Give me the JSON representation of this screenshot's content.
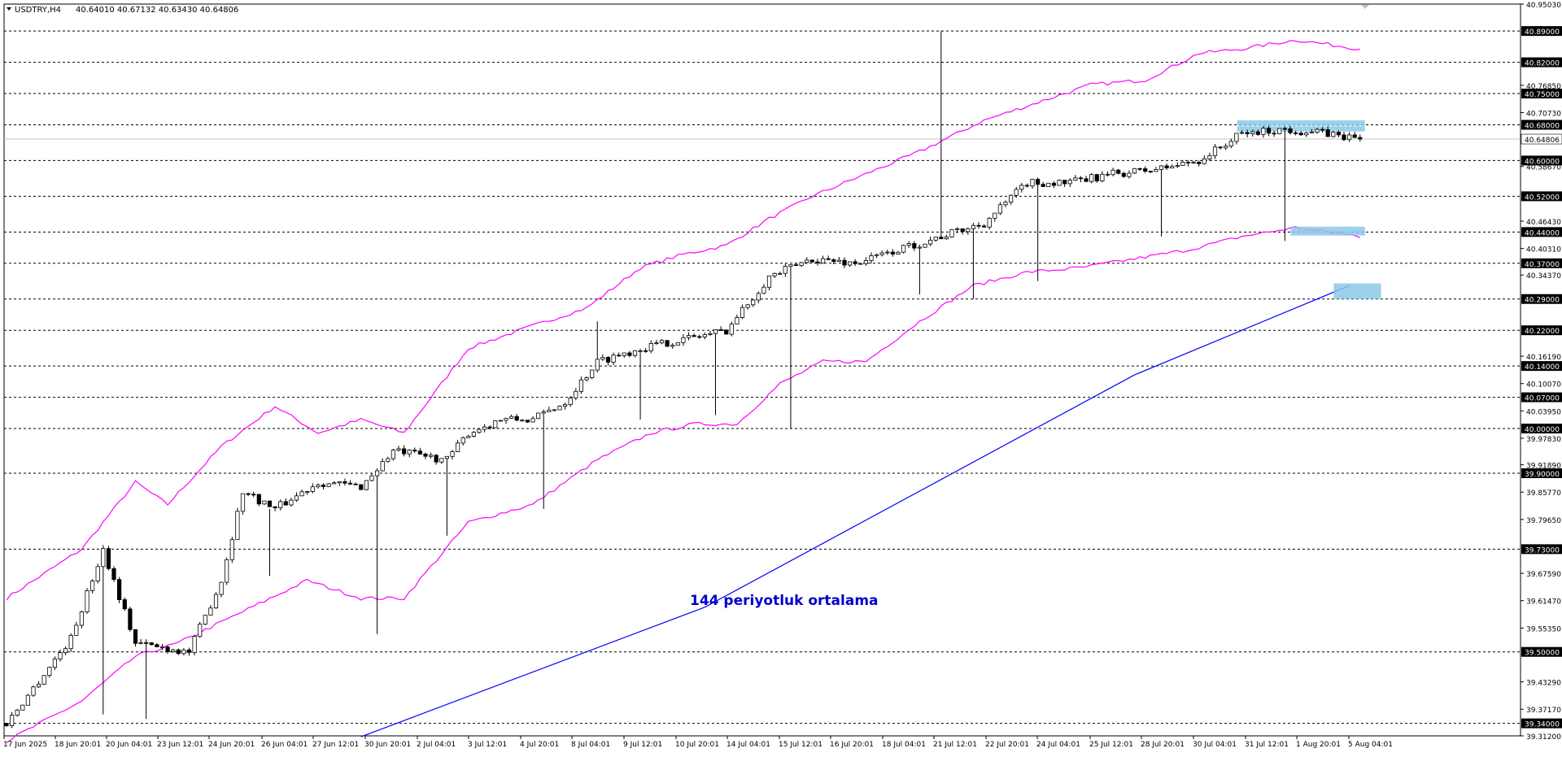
{
  "header": {
    "symbol_label": "USDTRY,H4",
    "ohlc": "40.64010 40.67132 40.63430 40.64806"
  },
  "annotation": {
    "text": "144 periyotluk ortalama"
  },
  "colors": {
    "upper_band": "#ff00ff",
    "lower_band": "#ff00ff",
    "moving_average": "#0000ff",
    "zone": "#8cc8e6",
    "current_price_line": "#c0c0c0",
    "grid_line": "#000000"
  },
  "chart_data": {
    "type": "candlestick",
    "symbol": "USDTRY",
    "timeframe": "H4",
    "grid": "horizontal dashed at key levels",
    "ylim": [
      39.312,
      40.9503
    ],
    "right_axis_ticks": [
      "40.95030",
      "40.76850",
      "40.70730",
      "40.58670",
      "40.46430",
      "40.40310",
      "40.34370",
      "40.16190",
      "40.10070",
      "40.03950",
      "39.97830",
      "39.91890",
      "39.85770",
      "39.79650",
      "39.67590",
      "39.61470",
      "39.55350",
      "39.43290",
      "39.37170",
      "39.31200"
    ],
    "levels": [
      "40.89000",
      "40.82000",
      "40.75000",
      "40.68000",
      "40.60000",
      "40.52000",
      "40.44000",
      "40.37000",
      "40.29000",
      "40.22000",
      "40.14000",
      "40.07000",
      "40.00000",
      "39.90000",
      "39.73000",
      "39.50000",
      "39.34000"
    ],
    "current_price": "40.64806",
    "x_tick_labels": [
      "17 Jun 2025",
      "18 Jun 20:01",
      "20 Jun 04:01",
      "23 Jun 12:01",
      "24 Jun 20:01",
      "26 Jun 04:01",
      "27 Jun 12:01",
      "30 Jun 20:01",
      "2 Jul 04:01",
      "3 Jul 12:01",
      "4 Jul 20:01",
      "8 Jul 04:01",
      "9 Jul 12:01",
      "10 Jul 20:01",
      "14 Jul 04:01",
      "15 Jul 12:01",
      "16 Jul 20:01",
      "18 Jul 04:01",
      "21 Jul 12:01",
      "22 Jul 20:01",
      "24 Jul 04:01",
      "25 Jul 12:01",
      "28 Jul 20:01",
      "30 Jul 04:01",
      "31 Jul 12:01",
      "1 Aug 20:01",
      "5 Aug 04:01"
    ],
    "trend_anchors": [
      {
        "i": 0,
        "v": 39.34
      },
      {
        "i": 12,
        "v": 39.53
      },
      {
        "i": 18,
        "v": 39.73
      },
      {
        "i": 24,
        "v": 39.52
      },
      {
        "i": 34,
        "v": 39.5
      },
      {
        "i": 40,
        "v": 39.66
      },
      {
        "i": 44,
        "v": 39.86
      },
      {
        "i": 50,
        "v": 39.82
      },
      {
        "i": 58,
        "v": 39.88
      },
      {
        "i": 66,
        "v": 39.87
      },
      {
        "i": 72,
        "v": 39.95
      },
      {
        "i": 82,
        "v": 39.93
      },
      {
        "i": 86,
        "v": 39.99
      },
      {
        "i": 92,
        "v": 40.02
      },
      {
        "i": 98,
        "v": 40.02
      },
      {
        "i": 104,
        "v": 40.06
      },
      {
        "i": 110,
        "v": 40.15
      },
      {
        "i": 118,
        "v": 40.18
      },
      {
        "i": 126,
        "v": 40.2
      },
      {
        "i": 134,
        "v": 40.22
      },
      {
        "i": 142,
        "v": 40.34
      },
      {
        "i": 150,
        "v": 40.38
      },
      {
        "i": 158,
        "v": 40.37
      },
      {
        "i": 166,
        "v": 40.4
      },
      {
        "i": 174,
        "v": 40.43
      },
      {
        "i": 182,
        "v": 40.46
      },
      {
        "i": 190,
        "v": 40.55
      },
      {
        "i": 198,
        "v": 40.55
      },
      {
        "i": 206,
        "v": 40.57
      },
      {
        "i": 214,
        "v": 40.58
      },
      {
        "i": 222,
        "v": 40.6
      },
      {
        "i": 230,
        "v": 40.66
      },
      {
        "i": 238,
        "v": 40.67
      },
      {
        "i": 246,
        "v": 40.66
      },
      {
        "i": 252,
        "v": 40.64806
      }
    ],
    "spikes": [
      {
        "i": 18,
        "low": 39.36
      },
      {
        "i": 26,
        "low": 39.35
      },
      {
        "i": 49,
        "high": 39.82,
        "low": 39.67
      },
      {
        "i": 69,
        "low": 39.54
      },
      {
        "i": 82,
        "low": 39.76
      },
      {
        "i": 100,
        "low": 39.82
      },
      {
        "i": 110,
        "high": 40.24
      },
      {
        "i": 118,
        "low": 40.02
      },
      {
        "i": 132,
        "low": 40.03
      },
      {
        "i": 146,
        "low": 40.0
      },
      {
        "i": 170,
        "low": 40.3
      },
      {
        "i": 174,
        "high": 40.89
      },
      {
        "i": 180,
        "low": 40.29
      },
      {
        "i": 192,
        "low": 40.33
      },
      {
        "i": 215,
        "low": 40.43
      },
      {
        "i": 238,
        "low": 40.42
      }
    ],
    "upper_band": [
      {
        "i": 0,
        "v": 39.62
      },
      {
        "i": 14,
        "v": 39.73
      },
      {
        "i": 24,
        "v": 39.88
      },
      {
        "i": 30,
        "v": 39.83
      },
      {
        "i": 40,
        "v": 39.96
      },
      {
        "i": 50,
        "v": 40.05
      },
      {
        "i": 58,
        "v": 39.99
      },
      {
        "i": 66,
        "v": 40.02
      },
      {
        "i": 74,
        "v": 39.99
      },
      {
        "i": 86,
        "v": 40.18
      },
      {
        "i": 98,
        "v": 40.23
      },
      {
        "i": 108,
        "v": 40.27
      },
      {
        "i": 118,
        "v": 40.36
      },
      {
        "i": 126,
        "v": 40.39
      },
      {
        "i": 134,
        "v": 40.41
      },
      {
        "i": 142,
        "v": 40.47
      },
      {
        "i": 150,
        "v": 40.52
      },
      {
        "i": 160,
        "v": 40.57
      },
      {
        "i": 170,
        "v": 40.62
      },
      {
        "i": 182,
        "v": 40.69
      },
      {
        "i": 192,
        "v": 40.73
      },
      {
        "i": 202,
        "v": 40.77
      },
      {
        "i": 212,
        "v": 40.78
      },
      {
        "i": 222,
        "v": 40.84
      },
      {
        "i": 230,
        "v": 40.85
      },
      {
        "i": 240,
        "v": 40.87
      },
      {
        "i": 252,
        "v": 40.85
      }
    ],
    "lower_band": [
      {
        "i": 0,
        "v": 39.3
      },
      {
        "i": 14,
        "v": 39.39
      },
      {
        "i": 24,
        "v": 39.49
      },
      {
        "i": 32,
        "v": 39.52
      },
      {
        "i": 44,
        "v": 39.59
      },
      {
        "i": 56,
        "v": 39.66
      },
      {
        "i": 66,
        "v": 39.62
      },
      {
        "i": 74,
        "v": 39.62
      },
      {
        "i": 86,
        "v": 39.79
      },
      {
        "i": 98,
        "v": 39.83
      },
      {
        "i": 110,
        "v": 39.93
      },
      {
        "i": 120,
        "v": 39.99
      },
      {
        "i": 128,
        "v": 40.01
      },
      {
        "i": 136,
        "v": 40.01
      },
      {
        "i": 144,
        "v": 40.1
      },
      {
        "i": 152,
        "v": 40.15
      },
      {
        "i": 160,
        "v": 40.15
      },
      {
        "i": 170,
        "v": 40.24
      },
      {
        "i": 180,
        "v": 40.32
      },
      {
        "i": 190,
        "v": 40.35
      },
      {
        "i": 200,
        "v": 40.36
      },
      {
        "i": 210,
        "v": 40.38
      },
      {
        "i": 220,
        "v": 40.4
      },
      {
        "i": 230,
        "v": 40.43
      },
      {
        "i": 240,
        "v": 40.45
      },
      {
        "i": 252,
        "v": 40.43
      }
    ],
    "moving_average": [
      {
        "i": 66,
        "v": 39.31
      },
      {
        "i": 130,
        "v": 39.6
      },
      {
        "i": 170,
        "v": 39.86
      },
      {
        "i": 210,
        "v": 40.12
      },
      {
        "i": 250,
        "v": 40.32
      }
    ],
    "zones": [
      {
        "label": "resistance",
        "i0": 230,
        "i1": 252,
        "v0": 40.665,
        "v1": 40.69
      },
      {
        "label": "support",
        "i0": 240,
        "i1": 252,
        "v0": 40.432,
        "v1": 40.452
      },
      {
        "label": "ma_target",
        "i0": 248,
        "i1": 255,
        "v0": 40.29,
        "v1": 40.325
      }
    ]
  }
}
